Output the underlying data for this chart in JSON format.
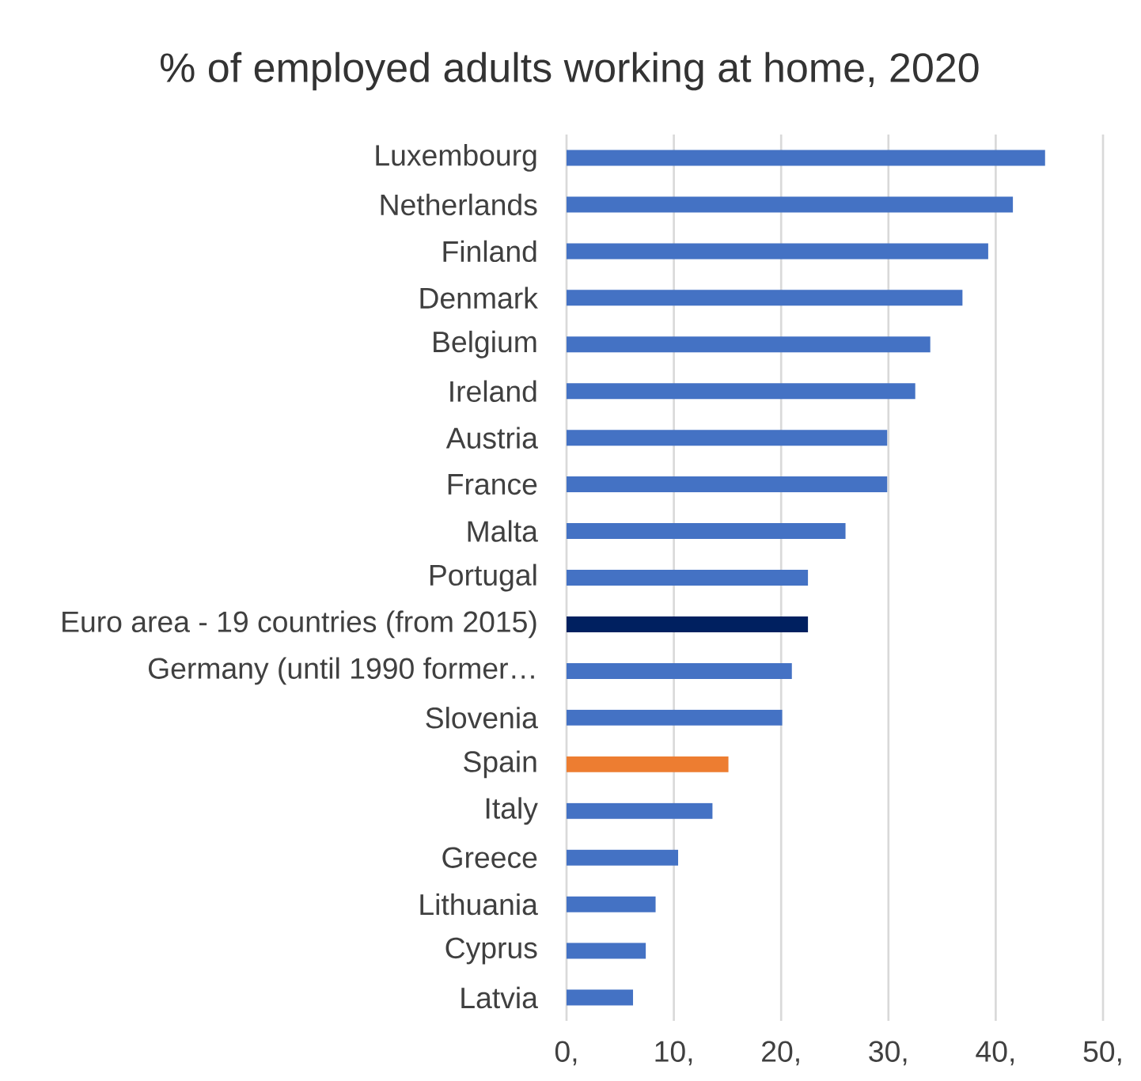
{
  "chart_data": {
    "type": "bar",
    "orientation": "horizontal",
    "title": "% of employed adults working at home, 2020",
    "categories": [
      "Luxembourg",
      "Netherlands",
      "Finland",
      "Denmark",
      "Belgium",
      "Ireland",
      "Austria",
      "France",
      "Malta",
      "Portugal",
      "Euro area - 19 countries  (from 2015)",
      "Germany (until 1990 former…",
      "Slovenia",
      "Spain",
      "Italy",
      "Greece",
      "Lithuania",
      "Cyprus",
      "Latvia"
    ],
    "values": [
      44.6,
      41.6,
      39.3,
      36.9,
      33.9,
      32.5,
      29.9,
      29.9,
      26.0,
      22.5,
      22.5,
      21.0,
      20.1,
      15.1,
      13.6,
      10.4,
      8.3,
      7.4,
      6.2
    ],
    "colors": [
      "#4472c4",
      "#4472c4",
      "#4472c4",
      "#4472c4",
      "#4472c4",
      "#4472c4",
      "#4472c4",
      "#4472c4",
      "#4472c4",
      "#4472c4",
      "#002060",
      "#4472c4",
      "#4472c4",
      "#ed7d31",
      "#4472c4",
      "#4472c4",
      "#4472c4",
      "#4472c4",
      "#4472c4"
    ],
    "xlim": [
      0,
      50
    ],
    "xticks": [
      {
        "value": 0,
        "label": "0,"
      },
      {
        "value": 10,
        "label": "10,"
      },
      {
        "value": 20,
        "label": "20,"
      },
      {
        "value": 30,
        "label": "30,"
      },
      {
        "value": 40,
        "label": "40,"
      },
      {
        "value": 50,
        "label": "50,"
      }
    ],
    "grid": "x"
  }
}
